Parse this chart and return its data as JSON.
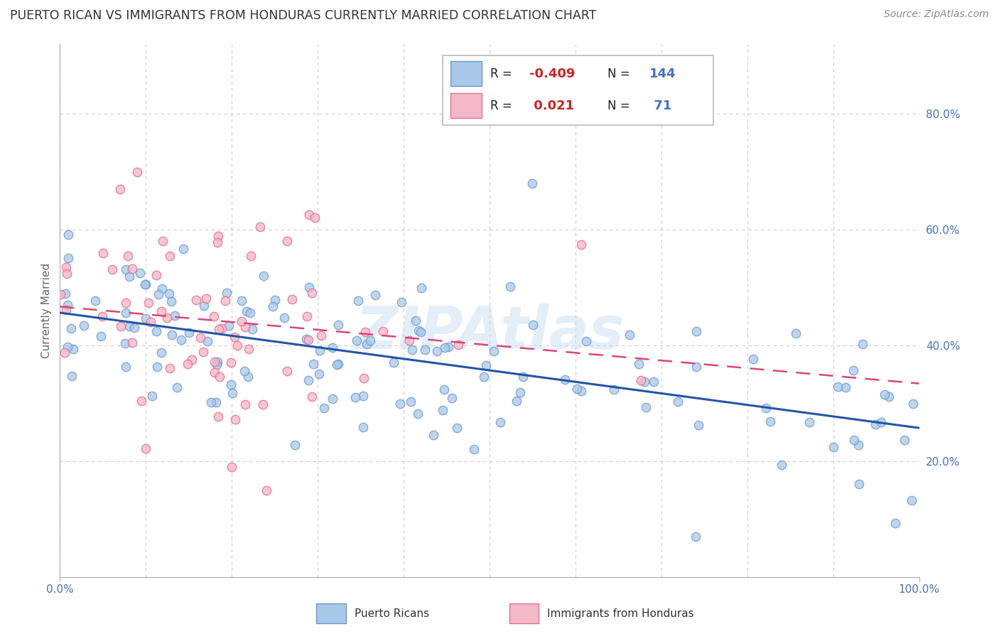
{
  "title": "PUERTO RICAN VS IMMIGRANTS FROM HONDURAS CURRENTLY MARRIED CORRELATION CHART",
  "source": "Source: ZipAtlas.com",
  "ylabel": "Currently Married",
  "xlim": [
    0.0,
    1.0
  ],
  "ylim": [
    0.0,
    0.92
  ],
  "legend_r1": "-0.409",
  "legend_n1": "144",
  "legend_r2": " 0.021",
  "legend_n2": " 71",
  "blue_color": "#a8c8e8",
  "blue_edge_color": "#6699cc",
  "pink_color": "#f4b8c8",
  "pink_edge_color": "#e07090",
  "blue_line_color": "#2255aa",
  "pink_line_color": "#dd4477",
  "watermark": "ZIPAtlas",
  "watermark_color": "#c8dff0",
  "background_color": "#ffffff",
  "grid_color": "#cccccc",
  "title_color": "#333333",
  "source_color": "#888888",
  "tick_color": "#4472c4",
  "ylabel_color": "#666666"
}
